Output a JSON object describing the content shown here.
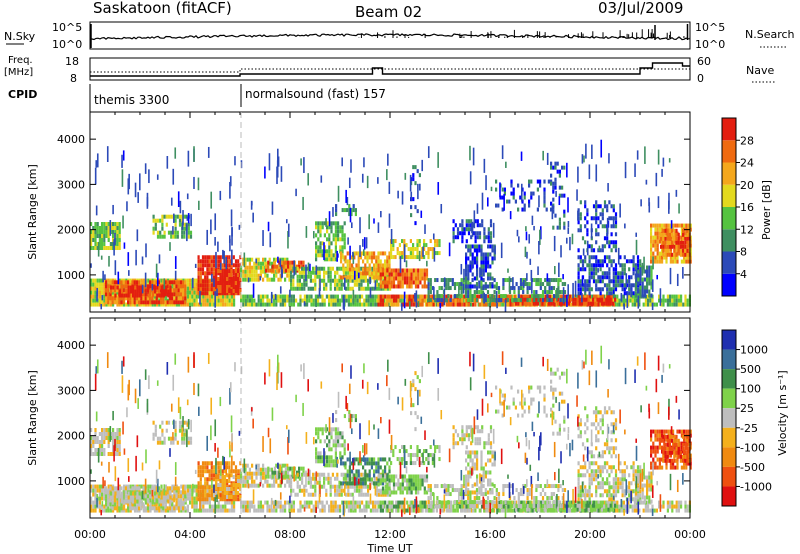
{
  "header": {
    "station": "Saskatoon (fitACF)",
    "beam": "Beam 02",
    "date": "03/Jul/2009"
  },
  "nsky_panel": {
    "label": "N.Sky",
    "right_label": "N.Search",
    "left_ticks": [
      "10^5",
      "10^0"
    ],
    "right_ticks": [
      "10^5",
      "10^0"
    ]
  },
  "freq_panel": {
    "label_line1": "Freq.",
    "label_line2": "[MHz]",
    "right_label": "Nave",
    "left_ticks": [
      "18",
      "8"
    ],
    "right_ticks": [
      "60",
      "0"
    ]
  },
  "cpid": {
    "label": "CPID",
    "segments": [
      {
        "name": "themis 3300",
        "start_hour": 0
      },
      {
        "name": "normalsound (fast) 157",
        "start_hour": 6
      }
    ]
  },
  "chart_data": [
    {
      "type": "heatmap",
      "quantity": "power",
      "ylabel": "Slant Range [km]",
      "xlabel": "Time UT",
      "ylim": [
        180,
        4600
      ],
      "yticks": [
        1000,
        2000,
        3000,
        4000
      ],
      "xlim": [
        0,
        24
      ],
      "colorbar_label": "Power [dB]",
      "colorbar_ticks": [
        "4",
        "8",
        "12",
        "16",
        "20",
        "24",
        "28"
      ],
      "colorbar_colors": [
        "#0000ff",
        "#2c4ab8",
        "#3f8f61",
        "#55c340",
        "#e3d91e",
        "#f4a71c",
        "#ef6a10",
        "#e31e10"
      ]
    },
    {
      "type": "heatmap",
      "quantity": "velocity",
      "ylabel": "Slant Range [km]",
      "xlabel": "Time UT",
      "ylim": [
        180,
        4600
      ],
      "yticks": [
        1000,
        2000,
        3000,
        4000
      ],
      "xlim": [
        0,
        24
      ],
      "colorbar_label": "Velocity [m s⁻¹]",
      "colorbar_ticks": [
        "1000",
        "500",
        "100",
        "25",
        "-25",
        "-100",
        "-500",
        "-1000"
      ],
      "colorbar_colors": [
        "#1f2fb0",
        "#3a6f9a",
        "#3f8f4a",
        "#7fd24a",
        "#bebebe",
        "#f4b01c",
        "#f08a10",
        "#ef5010",
        "#e01010"
      ]
    }
  ],
  "xaxis": {
    "ticks": [
      "00:00",
      "04:00",
      "08:00",
      "12:00",
      "16:00",
      "20:00",
      "00:00"
    ],
    "label": "Time UT"
  }
}
